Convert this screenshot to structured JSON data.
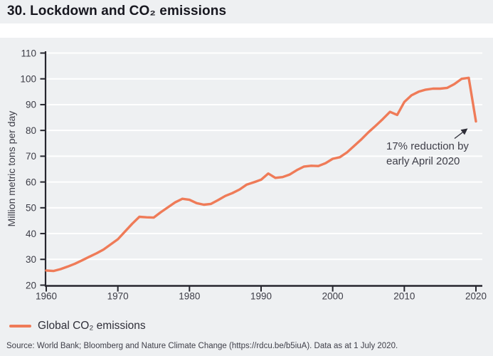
{
  "header": {
    "title": "30. Lockdown and CO₂ emissions"
  },
  "legend": {
    "label": "Global CO₂ emissions"
  },
  "annotation": {
    "line1": "17% reduction by",
    "line2": "early April 2020"
  },
  "source": "Source: World Bank; Bloomberg and Nature Climate Change (https://rdcu.be/b5iuA). Data as at 1 July 2020.",
  "colors": {
    "line": "#ef7b58",
    "background": "#eef0f2",
    "grid": "#ffffff",
    "axis": "#26262e",
    "tick_text": "#3d3d47",
    "title_text": "#17171f"
  },
  "chart_data": {
    "type": "line",
    "title": "30. Lockdown and CO₂ emissions",
    "xlabel": "",
    "ylabel": "Million metric tons per day",
    "ylim": [
      20,
      110
    ],
    "xlim": [
      1960,
      2021
    ],
    "y_ticks": [
      20,
      30,
      40,
      50,
      60,
      70,
      80,
      90,
      100,
      110
    ],
    "x_ticks": [
      1960,
      1970,
      1980,
      1990,
      2000,
      2010,
      2020
    ],
    "grid": true,
    "legend_position": "bottom-left",
    "annotation_text": "17% reduction by early April 2020",
    "series": [
      {
        "name": "Global CO₂ emissions",
        "color": "#ef7b58",
        "x": [
          1960,
          1961,
          1962,
          1963,
          1964,
          1965,
          1966,
          1967,
          1968,
          1969,
          1970,
          1971,
          1972,
          1973,
          1974,
          1975,
          1976,
          1977,
          1978,
          1979,
          1980,
          1981,
          1982,
          1983,
          1984,
          1985,
          1986,
          1987,
          1988,
          1989,
          1990,
          1991,
          1992,
          1993,
          1994,
          1995,
          1996,
          1997,
          1998,
          1999,
          2000,
          2001,
          2002,
          2003,
          2004,
          2005,
          2006,
          2007,
          2008,
          2009,
          2010,
          2011,
          2012,
          2013,
          2014,
          2015,
          2016,
          2017,
          2018,
          2019,
          2020
        ],
        "y": [
          25.7,
          25.5,
          26.2,
          27.2,
          28.3,
          29.6,
          31.0,
          32.3,
          33.8,
          35.8,
          37.8,
          40.8,
          43.8,
          46.5,
          46.3,
          46.2,
          48.3,
          50.2,
          52.1,
          53.5,
          53.1,
          51.8,
          51.2,
          51.5,
          53.0,
          54.6,
          55.7,
          57.1,
          59.0,
          59.9,
          60.9,
          63.3,
          61.6,
          61.9,
          62.9,
          64.6,
          66.0,
          66.3,
          66.2,
          67.3,
          69.0,
          69.6,
          71.5,
          74.0,
          76.5,
          79.3,
          81.8,
          84.4,
          87.2,
          86.0,
          91.0,
          93.6,
          95.0,
          95.8,
          96.2,
          96.2,
          96.5,
          98.0,
          100.0,
          100.4,
          83.5
        ]
      }
    ]
  }
}
